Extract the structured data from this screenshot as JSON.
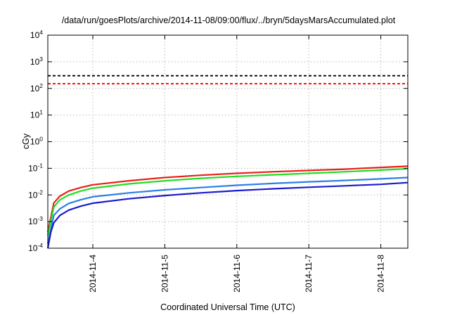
{
  "chart_data": {
    "type": "line",
    "title": "/data/run/goesPlots/archive/2014-11-08/09:00/flux/../bryn/5daysMarsAccumulated.plot",
    "xlabel": "Coordinated Universal Time (UTC)",
    "ylabel": "cGy",
    "y_scale": "log",
    "ylim": [
      0.0001,
      10000
    ],
    "xlim": [
      "2014-11-03 09:00",
      "2014-11-08 09:00"
    ],
    "grid": true,
    "y_ticks": [
      {
        "base": "10",
        "exp": "-4",
        "value": 0.0001
      },
      {
        "base": "10",
        "exp": "-3",
        "value": 0.001
      },
      {
        "base": "10",
        "exp": "-2",
        "value": 0.01
      },
      {
        "base": "10",
        "exp": "-1",
        "value": 0.1
      },
      {
        "base": "10",
        "exp": "0",
        "value": 1
      },
      {
        "base": "10",
        "exp": "1",
        "value": 10
      },
      {
        "base": "10",
        "exp": "2",
        "value": 100
      },
      {
        "base": "10",
        "exp": "3",
        "value": 1000
      },
      {
        "base": "10",
        "exp": "4",
        "value": 10000
      }
    ],
    "x_ticks": [
      {
        "label": "2014-11-4",
        "value": "2014-11-04 00:00"
      },
      {
        "label": "2014-11-5",
        "value": "2014-11-05 00:00"
      },
      {
        "label": "2014-11-6",
        "value": "2014-11-06 00:00"
      },
      {
        "label": "2014-11-7",
        "value": "2014-11-07 00:00"
      },
      {
        "label": "2014-11-8",
        "value": "2014-11-08 00:00"
      }
    ],
    "reference_lines": [
      {
        "value": 300,
        "color": "#000000",
        "style": "dashed"
      },
      {
        "value": 150,
        "color": "#ff0000",
        "style": "dashed"
      }
    ],
    "series": [
      {
        "color": "#e8201c",
        "x": [
          "2014-11-03 09:00",
          "2014-11-03 11:00",
          "2014-11-03 13:00",
          "2014-11-03 16:00",
          "2014-11-03 20:00",
          "2014-11-04 00:00",
          "2014-11-04 12:00",
          "2014-11-05 00:00",
          "2014-11-05 12:00",
          "2014-11-06 00:00",
          "2014-11-06 12:00",
          "2014-11-07 00:00",
          "2014-11-07 12:00",
          "2014-11-08 00:00",
          "2014-11-08 09:00"
        ],
        "y": [
          0.0004,
          0.005,
          0.009,
          0.014,
          0.019,
          0.024,
          0.034,
          0.045,
          0.055,
          0.065,
          0.074,
          0.083,
          0.093,
          0.108,
          0.12
        ]
      },
      {
        "color": "#22dd22",
        "x": [
          "2014-11-03 09:00",
          "2014-11-03 11:00",
          "2014-11-03 13:00",
          "2014-11-03 16:00",
          "2014-11-03 20:00",
          "2014-11-04 00:00",
          "2014-11-04 12:00",
          "2014-11-05 00:00",
          "2014-11-05 12:00",
          "2014-11-06 00:00",
          "2014-11-06 12:00",
          "2014-11-07 00:00",
          "2014-11-07 12:00",
          "2014-11-08 00:00",
          "2014-11-08 09:00"
        ],
        "y": [
          0.0003,
          0.0035,
          0.0065,
          0.01,
          0.014,
          0.018,
          0.026,
          0.034,
          0.042,
          0.05,
          0.057,
          0.065,
          0.074,
          0.086,
          0.096
        ]
      },
      {
        "color": "#2b7fe6",
        "x": [
          "2014-11-03 09:00",
          "2014-11-03 11:00",
          "2014-11-03 13:00",
          "2014-11-03 16:00",
          "2014-11-03 20:00",
          "2014-11-04 00:00",
          "2014-11-04 12:00",
          "2014-11-05 00:00",
          "2014-11-05 12:00",
          "2014-11-06 00:00",
          "2014-11-06 12:00",
          "2014-11-07 00:00",
          "2014-11-07 12:00",
          "2014-11-08 00:00",
          "2014-11-08 09:00"
        ],
        "y": [
          0.00015,
          0.0017,
          0.003,
          0.0048,
          0.0066,
          0.0085,
          0.012,
          0.0155,
          0.019,
          0.023,
          0.027,
          0.031,
          0.035,
          0.04,
          0.045
        ]
      },
      {
        "color": "#1a1ad0",
        "x": [
          "2014-11-03 09:00",
          "2014-11-03 10:00",
          "2014-11-03 11:00",
          "2014-11-03 13:00",
          "2014-11-03 16:00",
          "2014-11-03 20:00",
          "2014-11-04 00:00",
          "2014-11-04 12:00",
          "2014-11-05 00:00",
          "2014-11-05 12:00",
          "2014-11-06 00:00",
          "2014-11-06 12:00",
          "2014-11-07 00:00",
          "2014-11-07 12:00",
          "2014-11-08 00:00",
          "2014-11-08 09:00"
        ],
        "y": [
          0.0001,
          0.0004,
          0.0009,
          0.0017,
          0.0027,
          0.0038,
          0.0049,
          0.0072,
          0.0095,
          0.012,
          0.0145,
          0.017,
          0.0195,
          0.022,
          0.025,
          0.029
        ]
      }
    ]
  }
}
